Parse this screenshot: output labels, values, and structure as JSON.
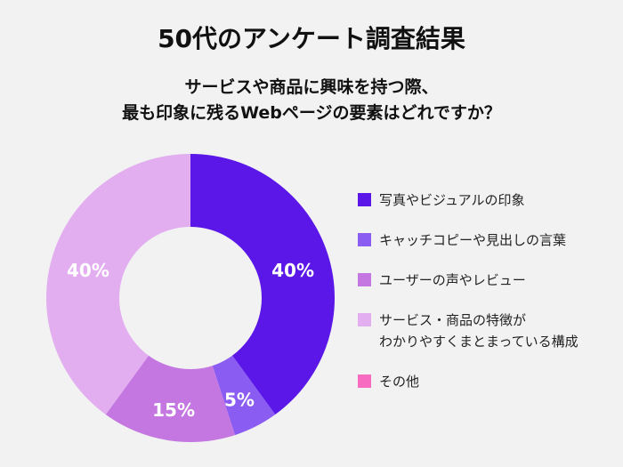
{
  "chart_data": {
    "type": "donut",
    "title": "50代のアンケート調査結果",
    "subtitle": "サービスや商品に興味を持つ際、\n最も印象に残るWebページの要素はどれですか？",
    "categories": [
      "写真やビジュアルの印象",
      "キャッチコピーや見出しの言葉",
      "ユーザーの声やレビュー",
      "サービス・商品の特徴が\nわかりやすくまとまっている構成",
      "その他"
    ],
    "values": [
      40,
      5,
      15,
      40,
      0
    ],
    "value_labels": [
      "40%",
      "5%",
      "15%",
      "40%",
      null
    ],
    "colors": [
      "#5a17e8",
      "#8b5cf2",
      "#c477e0",
      "#e2aef0",
      "#f76cc0"
    ]
  }
}
